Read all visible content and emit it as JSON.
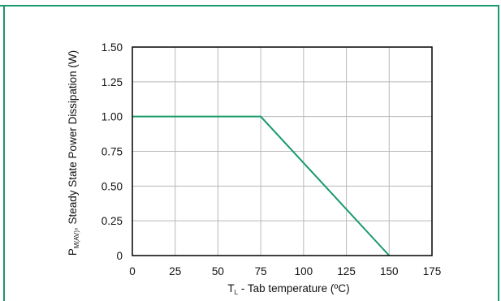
{
  "colors": {
    "frame": "#1a9a6a",
    "line": "#1a9a6a",
    "grid": "#b8b8b8",
    "axis": "#000000"
  },
  "chart_data": {
    "type": "line",
    "title": "",
    "xlabel": {
      "main": "T",
      "subscript": "L",
      "rest": " - Tab temperature (ºC)"
    },
    "ylabel": {
      "main": "P",
      "subscript": "M(AV)",
      "rest": ", Steady State Power Dissipation (W)"
    },
    "xlim": [
      0,
      175
    ],
    "ylim": [
      0,
      1.5
    ],
    "x_ticks": [
      "0",
      "25",
      "50",
      "75",
      "100",
      "125",
      "150",
      "175"
    ],
    "y_ticks": [
      "0",
      "0.25",
      "0.50",
      "0.75",
      "1.00",
      "1.25",
      "1.50"
    ],
    "grid": true,
    "series": [
      {
        "x": [
          0,
          75,
          150
        ],
        "y": [
          1.0,
          1.0,
          0.0
        ]
      }
    ]
  }
}
